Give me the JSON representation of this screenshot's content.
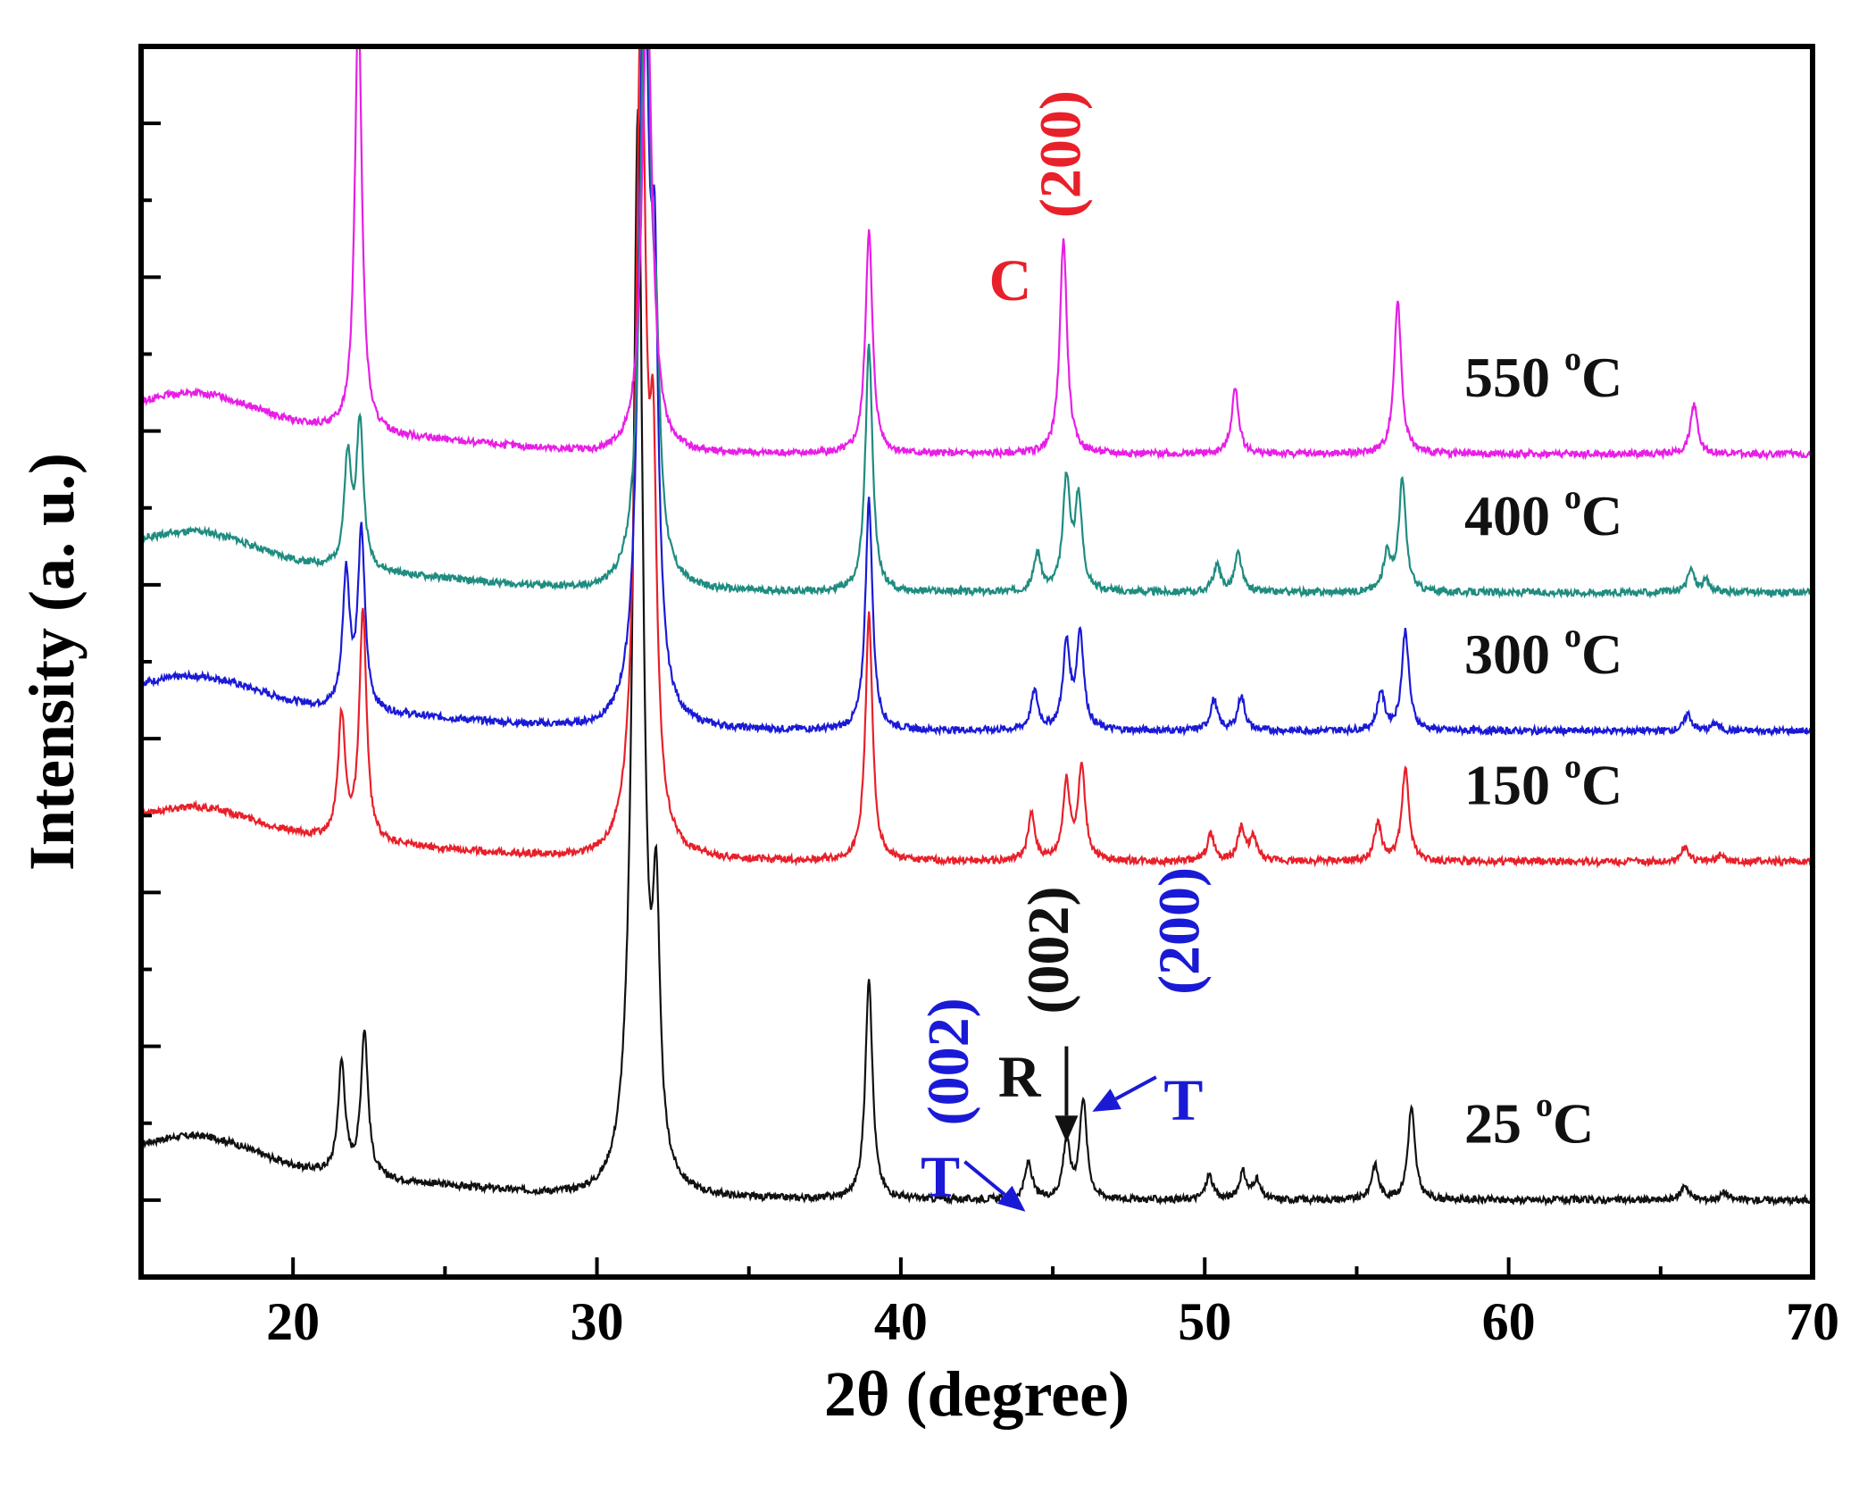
{
  "chart_data": {
    "type": "line",
    "title": "",
    "xlabel": "2θ (degree)",
    "ylabel": "Intensity (a. u.)",
    "xlim": [
      15,
      70
    ],
    "ylim": [
      0,
      16
    ],
    "xticks": [
      20,
      30,
      40,
      50,
      60,
      70
    ],
    "xtick_labels": [
      "20",
      "30",
      "40",
      "50",
      "60",
      "70"
    ],
    "grid": false,
    "legend": "none",
    "series": [
      {
        "name": "25 °C",
        "label_text": "25",
        "label_unit": "C",
        "label_sup": "o",
        "color": "#111111",
        "baseline": 1.0,
        "bg": 1.0,
        "peaks": [
          [
            21.6,
            1.45,
            0.14
          ],
          [
            22.35,
            1.9,
            0.14
          ],
          [
            31.35,
            14.0,
            0.2
          ],
          [
            31.95,
            3.2,
            0.14
          ],
          [
            38.95,
            2.9,
            0.14
          ],
          [
            44.2,
            0.48,
            0.14
          ],
          [
            45.45,
            0.75,
            0.14
          ],
          [
            46.0,
            1.3,
            0.14
          ],
          [
            50.15,
            0.32,
            0.14
          ],
          [
            51.25,
            0.35,
            0.14
          ],
          [
            51.7,
            0.25,
            0.14
          ],
          [
            55.6,
            0.45,
            0.14
          ],
          [
            56.8,
            1.2,
            0.14
          ],
          [
            65.8,
            0.2,
            0.14
          ],
          [
            67.1,
            0.1,
            0.14
          ]
        ]
      },
      {
        "name": "150 °C",
        "label_text": "150",
        "label_unit": "C",
        "label_sup": "o",
        "color": "#e8202a",
        "baseline": 5.4,
        "bg": 0.85,
        "peaks": [
          [
            21.6,
            1.6,
            0.14
          ],
          [
            22.3,
            3.0,
            0.14
          ],
          [
            31.45,
            11.0,
            0.2
          ],
          [
            31.85,
            4.0,
            0.14
          ],
          [
            38.95,
            3.2,
            0.14
          ],
          [
            44.3,
            0.6,
            0.14
          ],
          [
            45.45,
            1.0,
            0.14
          ],
          [
            45.95,
            1.2,
            0.14
          ],
          [
            50.2,
            0.35,
            0.14
          ],
          [
            51.2,
            0.42,
            0.14
          ],
          [
            51.6,
            0.3,
            0.14
          ],
          [
            55.7,
            0.5,
            0.14
          ],
          [
            56.6,
            1.2,
            0.14
          ],
          [
            65.8,
            0.2,
            0.14
          ],
          [
            67.0,
            0.1,
            0.14
          ]
        ]
      },
      {
        "name": "300 °C",
        "label_text": "300",
        "label_unit": "C",
        "label_sup": "o",
        "color": "#1a1ad6",
        "baseline": 7.1,
        "bg": 0.85,
        "peaks": [
          [
            21.75,
            1.75,
            0.14
          ],
          [
            22.25,
            2.3,
            0.14
          ],
          [
            31.55,
            10.0,
            0.2
          ],
          [
            31.9,
            4.5,
            0.14
          ],
          [
            38.95,
            3.0,
            0.14
          ],
          [
            44.4,
            0.5,
            0.14
          ],
          [
            45.45,
            1.1,
            0.14
          ],
          [
            45.9,
            1.25,
            0.14
          ],
          [
            50.3,
            0.4,
            0.14
          ],
          [
            51.2,
            0.45,
            0.14
          ],
          [
            55.8,
            0.5,
            0.14
          ],
          [
            56.6,
            1.3,
            0.14
          ],
          [
            65.9,
            0.22,
            0.14
          ],
          [
            66.8,
            0.1,
            0.14
          ]
        ]
      },
      {
        "name": "400 °C",
        "label_text": "400",
        "label_unit": "C",
        "label_sup": "o",
        "color": "#1f8c80",
        "baseline": 8.9,
        "bg": 0.95,
        "peaks": [
          [
            21.8,
            1.4,
            0.14
          ],
          [
            22.2,
            1.9,
            0.14
          ],
          [
            31.6,
            8.5,
            0.2
          ],
          [
            31.95,
            2.0,
            0.14
          ],
          [
            38.95,
            3.2,
            0.14
          ],
          [
            44.5,
            0.5,
            0.14
          ],
          [
            45.45,
            1.45,
            0.14
          ],
          [
            45.85,
            1.2,
            0.14
          ],
          [
            50.4,
            0.35,
            0.14
          ],
          [
            51.1,
            0.5,
            0.14
          ],
          [
            56.0,
            0.5,
            0.14
          ],
          [
            56.5,
            1.45,
            0.14
          ],
          [
            66.0,
            0.3,
            0.14
          ],
          [
            66.5,
            0.15,
            0.14
          ]
        ]
      },
      {
        "name": "550 °C",
        "label_text": "550",
        "label_unit": "C",
        "label_sup": "o",
        "color": "#e81ee6",
        "baseline": 10.7,
        "bg": 0.95,
        "peaks": [
          [
            22.15,
            5.6,
            0.14
          ],
          [
            31.65,
            6.0,
            0.2
          ],
          [
            38.95,
            2.9,
            0.14
          ],
          [
            45.35,
            2.8,
            0.14
          ],
          [
            51.0,
            0.85,
            0.14
          ],
          [
            56.35,
            2.0,
            0.14
          ],
          [
            66.1,
            0.65,
            0.14
          ]
        ]
      }
    ],
    "annotations": [
      {
        "text": "C",
        "color": "#e8202a",
        "x": 43.6,
        "y": 12.7,
        "rotate": 0
      },
      {
        "text": "(200)",
        "color": "#e8202a",
        "x": 45.9,
        "y": 14.6,
        "rotate": -90
      },
      {
        "text": "T",
        "color": "#1a1ad6",
        "x": 41.3,
        "y": 1.05,
        "rotate": 0
      },
      {
        "text": "(002)",
        "color": "#1a1ad6",
        "x": 42.2,
        "y": 2.8,
        "rotate": -90
      },
      {
        "text": "R",
        "color": "#111111",
        "x": 43.9,
        "y": 2.35,
        "rotate": 0
      },
      {
        "text": "(002)",
        "color": "#111111",
        "x": 45.5,
        "y": 4.25,
        "rotate": -90
      },
      {
        "text": "T",
        "color": "#1a1ad6",
        "x": 49.3,
        "y": 2.05,
        "rotate": 0
      },
      {
        "text": "(200)",
        "color": "#1a1ad6",
        "x": 49.8,
        "y": 4.5,
        "rotate": -90
      }
    ],
    "arrows": [
      {
        "color": "#1a1ad6",
        "from": [
          42.1,
          1.5
        ],
        "to": [
          44.1,
          0.85
        ]
      },
      {
        "color": "#111111",
        "from": [
          45.45,
          3.0
        ],
        "to": [
          45.45,
          1.75
        ]
      },
      {
        "color": "#1a1ad6",
        "from": [
          48.4,
          2.6
        ],
        "to": [
          46.3,
          2.15
        ]
      }
    ]
  }
}
